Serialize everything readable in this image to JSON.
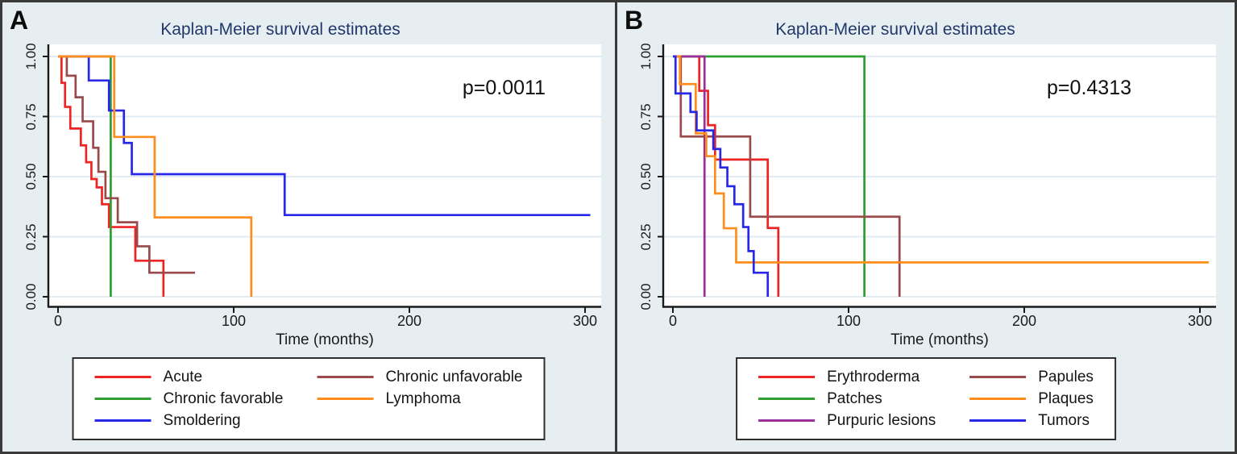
{
  "figure": {
    "name": "Kaplan-Meier survival estimates, panels A and B"
  },
  "chart_data": [
    {
      "panel_label": "A",
      "type": "line",
      "subtype": "kaplan-meier-step",
      "title": "Kaplan-Meier survival estimates",
      "p_value": "p=0.0011",
      "xlabel": "Time (months)",
      "ylabel": "",
      "xlim": [
        0,
        309
      ],
      "ylim": [
        0,
        1
      ],
      "grid": "horizontal",
      "legend_position": "bottom-boxed",
      "x_ticks": [
        {
          "value": 0,
          "label": "0"
        },
        {
          "value": 100,
          "label": "100"
        },
        {
          "value": 200,
          "label": "200"
        },
        {
          "value": 300,
          "label": "300"
        }
      ],
      "y_ticks": [
        {
          "value": 0,
          "label": "0.00"
        },
        {
          "value": 0.25,
          "label": "0.25"
        },
        {
          "value": 0.5,
          "label": "0.50"
        },
        {
          "value": 0.75,
          "label": "0.75"
        },
        {
          "value": 1,
          "label": "1.00"
        }
      ],
      "series": [
        {
          "name": "Acute",
          "color": "#ee2424",
          "drops": [
            [
              2,
              0.89
            ],
            [
              4,
              0.79
            ],
            [
              7,
              0.7
            ],
            [
              13,
              0.63
            ],
            [
              16,
              0.56
            ],
            [
              19,
              0.49
            ],
            [
              22,
              0.455
            ],
            [
              25,
              0.385
            ],
            [
              29,
              0.29
            ],
            [
              44,
              0.15
            ],
            [
              60,
              0
            ]
          ],
          "end": 60
        },
        {
          "name": "Chronic favorable",
          "color": "#2f9e30",
          "drops": [
            [
              30,
              0
            ]
          ],
          "end": 30
        },
        {
          "name": "Smoldering",
          "color": "#2727e8",
          "drops": [
            [
              17.5,
              0.9
            ],
            [
              29,
              0.775
            ],
            [
              37.5,
              0.64
            ],
            [
              42,
              0.51
            ],
            [
              129,
              0.34
            ]
          ],
          "end": 303
        },
        {
          "name": "Chronic unfavorable",
          "color": "#9a4a4a",
          "drops": [
            [
              5,
              0.92
            ],
            [
              10,
              0.83
            ],
            [
              14,
              0.73
            ],
            [
              20,
              0.62
            ],
            [
              23,
              0.52
            ],
            [
              27,
              0.41
            ],
            [
              34,
              0.31
            ],
            [
              45,
              0.21
            ],
            [
              52,
              0.1
            ]
          ],
          "end": 78
        },
        {
          "name": "Lymphoma",
          "color": "#ff8d1d",
          "drops": [
            [
              32,
              0.665
            ],
            [
              55,
              0.33
            ],
            [
              110,
              0
            ]
          ],
          "end": 110
        }
      ]
    },
    {
      "panel_label": "B",
      "type": "line",
      "subtype": "kaplan-meier-step",
      "title": "Kaplan-Meier survival estimates",
      "p_value": "p=0.4313",
      "xlabel": "Time (months)",
      "ylabel": "",
      "xlim": [
        0,
        309
      ],
      "ylim": [
        0,
        1
      ],
      "grid": "horizontal",
      "legend_position": "bottom-boxed",
      "x_ticks": [
        {
          "value": 0,
          "label": "0"
        },
        {
          "value": 100,
          "label": "100"
        },
        {
          "value": 200,
          "label": "200"
        },
        {
          "value": 300,
          "label": "300"
        }
      ],
      "y_ticks": [
        {
          "value": 0,
          "label": "0.00"
        },
        {
          "value": 0.25,
          "label": "0.25"
        },
        {
          "value": 0.5,
          "label": "0.50"
        },
        {
          "value": 0.75,
          "label": "0.75"
        },
        {
          "value": 1,
          "label": "1.00"
        }
      ],
      "series": [
        {
          "name": "Erythroderma",
          "color": "#ee2424",
          "drops": [
            [
              15,
              0.857
            ],
            [
              20,
              0.714
            ],
            [
              24,
              0.571
            ],
            [
              54,
              0.286
            ],
            [
              60,
              0
            ]
          ],
          "end": 60
        },
        {
          "name": "Patches",
          "color": "#2f9e30",
          "drops": [
            [
              109,
              0
            ]
          ],
          "end": 109
        },
        {
          "name": "Purpuric lesions",
          "color": "#9b2f9b",
          "drops": [
            [
              18,
              0
            ]
          ],
          "end": 18
        },
        {
          "name": "Papules",
          "color": "#9a4a4a",
          "drops": [
            [
              4.5,
              0.667
            ],
            [
              44,
              0.333
            ],
            [
              129,
              0
            ]
          ],
          "end": 129
        },
        {
          "name": "Plaques",
          "color": "#ff8d1d",
          "drops": [
            [
              4,
              0.885
            ],
            [
              13,
              0.68
            ],
            [
              19,
              0.585
            ],
            [
              24,
              0.43
            ],
            [
              29,
              0.285
            ],
            [
              36,
              0.143
            ]
          ],
          "end": 305
        },
        {
          "name": "Tumors",
          "color": "#2727e8",
          "drops": [
            [
              1.5,
              0.846
            ],
            [
              10,
              0.769
            ],
            [
              13.5,
              0.692
            ],
            [
              23,
              0.615
            ],
            [
              27,
              0.538
            ],
            [
              31,
              0.46
            ],
            [
              35,
              0.385
            ],
            [
              40,
              0.29
            ],
            [
              43,
              0.19
            ],
            [
              46,
              0.1
            ],
            [
              54,
              0
            ]
          ],
          "end": 54
        }
      ]
    }
  ]
}
